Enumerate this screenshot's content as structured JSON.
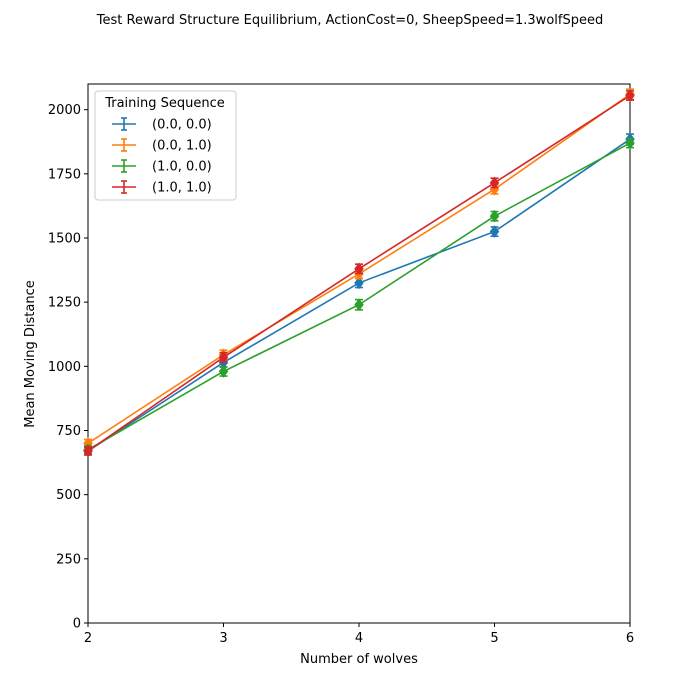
{
  "chart_data": {
    "type": "line",
    "title": "Test Reward Structure Equilibrium, ActionCost=0, SheepSpeed=1.3wolfSpeed",
    "xlabel": "Number of wolves",
    "ylabel": "Mean Moving Distance",
    "xlim": [
      2,
      6
    ],
    "ylim": [
      0,
      2100
    ],
    "x_ticks": [
      2,
      3,
      4,
      5,
      6
    ],
    "y_ticks": [
      0,
      250,
      500,
      750,
      1000,
      1250,
      1500,
      1750,
      2000
    ],
    "grid": false,
    "legend": {
      "title": "Training Sequence",
      "placement": "top-left"
    },
    "x": [
      2,
      3,
      4,
      5,
      6
    ],
    "series": [
      {
        "name": "(0.0, 0.0)",
        "color": "#1f77b4",
        "values": [
          670,
          1015,
          1325,
          1525,
          1885
        ],
        "errors": [
          15,
          18,
          18,
          18,
          20
        ]
      },
      {
        "name": "(0.0, 1.0)",
        "color": "#ff7f0e",
        "values": [
          700,
          1045,
          1360,
          1690,
          2060
        ],
        "errors": [
          15,
          18,
          18,
          18,
          20
        ]
      },
      {
        "name": "(1.0, 0.0)",
        "color": "#2ca02c",
        "values": [
          675,
          980,
          1240,
          1585,
          1870
        ],
        "errors": [
          15,
          18,
          20,
          18,
          18
        ]
      },
      {
        "name": "(1.0, 1.0)",
        "color": "#d62728",
        "values": [
          670,
          1035,
          1380,
          1715,
          2055
        ],
        "errors": [
          15,
          18,
          18,
          18,
          18
        ]
      }
    ]
  }
}
